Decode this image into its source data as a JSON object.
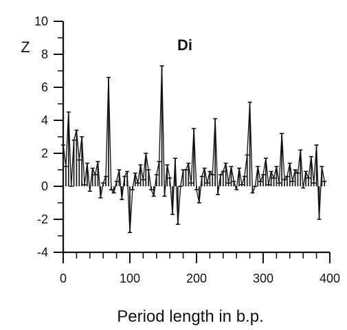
{
  "chart_data": {
    "type": "line",
    "title": "Di",
    "ylabel": "Z",
    "xlabel": "Period length in b.p.",
    "xlim": [
      0,
      400
    ],
    "ylim": [
      -4,
      10
    ],
    "x_ticks": [
      0,
      100,
      200,
      300,
      400
    ],
    "y_ticks": [
      -4,
      -2,
      0,
      2,
      4,
      6,
      8,
      10
    ],
    "grid": false,
    "series": [
      {
        "x": [
          0,
          4,
          8,
          12,
          16,
          20,
          24,
          28,
          32,
          36,
          40,
          44,
          48,
          52,
          56,
          60,
          64,
          68,
          72,
          76,
          80,
          84,
          88,
          92,
          96,
          100,
          104,
          108,
          112,
          116,
          120,
          124,
          128,
          132,
          136,
          140,
          144,
          148,
          152,
          156,
          160,
          164,
          168,
          172,
          176,
          180,
          184,
          188,
          192,
          196,
          200,
          204,
          208,
          212,
          216,
          220,
          224,
          228,
          232,
          236,
          240,
          244,
          248,
          252,
          256,
          260,
          264,
          268,
          272,
          276,
          280,
          284,
          288,
          292,
          296,
          300,
          304,
          308,
          312,
          316,
          320,
          324,
          328,
          332,
          336,
          340,
          344,
          348,
          352,
          356,
          360,
          364,
          368,
          372,
          376,
          380,
          384,
          388,
          392
        ],
        "values": [
          2.5,
          1.2,
          4.5,
          0.0,
          2.8,
          3.4,
          1.6,
          3.0,
          0.1,
          1.4,
          -0.3,
          1.1,
          0.7,
          1.5,
          -0.7,
          0.2,
          0.6,
          6.6,
          -0.2,
          -0.4,
          0.3,
          1.0,
          -0.8,
          0.6,
          0.9,
          -2.8,
          -0.2,
          0.8,
          0.2,
          1.3,
          0.4,
          2.0,
          1.0,
          -0.2,
          -0.6,
          0.7,
          1.5,
          7.3,
          -0.6,
          1.3,
          0.5,
          -1.7,
          1.7,
          -2.3,
          0.0,
          1.0,
          1.0,
          1.4,
          0.2,
          3.5,
          -0.2,
          -1.0,
          0.6,
          1.1,
          0.2,
          0.9,
          0.7,
          4.1,
          -0.5,
          0.7,
          0.9,
          1.4,
          0.2,
          1.2,
          0.3,
          -0.2,
          1.1,
          0.1,
          0.6,
          1.9,
          5.1,
          -0.4,
          0.0,
          1.2,
          0.3,
          0.7,
          1.7,
          0.1,
          0.9,
          0.5,
          1.2,
          0.2,
          3.2,
          0.4,
          0.6,
          1.4,
          0.3,
          1.0,
          0.8,
          2.2,
          -0.1,
          0.9,
          0.5,
          1.8,
          0.2,
          2.5,
          -2.0,
          1.2,
          0.3
        ]
      }
    ]
  }
}
